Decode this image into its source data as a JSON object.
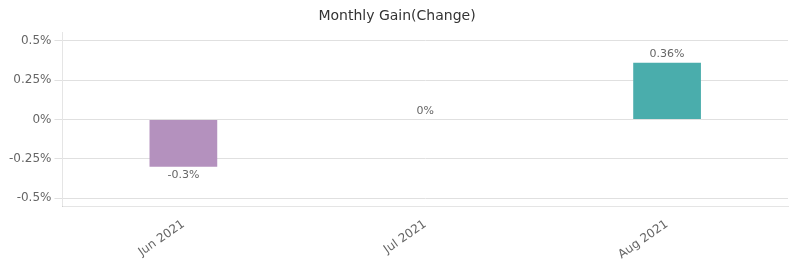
{
  "chart_data": {
    "type": "bar",
    "title": "Monthly Gain(Change)",
    "categories": [
      "Jun 2021",
      "Jul 2021",
      "Aug 2021"
    ],
    "values": [
      -0.3,
      0.0,
      0.36
    ],
    "value_labels": [
      "-0.3%",
      "0%",
      "0.36%"
    ],
    "colors": [
      "#b491be",
      "#b491be",
      "#4aadac"
    ],
    "ylim": [
      -0.55,
      0.55
    ],
    "yticks": [
      {
        "value": -0.5,
        "label": "-0.5%"
      },
      {
        "value": -0.25,
        "label": "-0.25%"
      },
      {
        "value": 0.0,
        "label": "0%"
      },
      {
        "value": 0.25,
        "label": "0.25%"
      },
      {
        "value": 0.5,
        "label": "0.5%"
      }
    ],
    "grid": true,
    "data_labels": true
  }
}
